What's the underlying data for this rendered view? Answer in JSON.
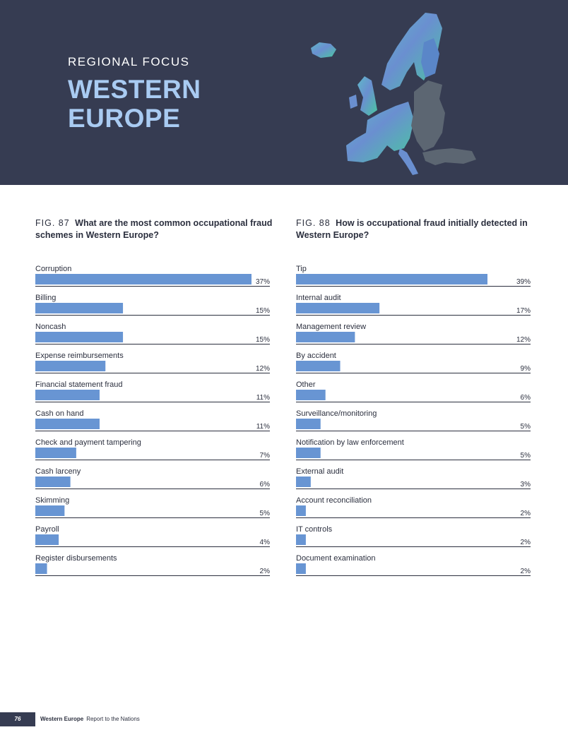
{
  "header": {
    "kicker": "REGIONAL FOCUS",
    "title_line1": "WESTERN",
    "title_line2": "EUROPE",
    "map_icon": "europe-map-illustration"
  },
  "colors": {
    "bar": "#6895d3",
    "axis": "#2b2f3e",
    "header_bg": "#363c52",
    "title_accent": "#a9cbf2"
  },
  "fig87": {
    "number": "FIG. 87",
    "question": "What are the most common occupational fraud schemes in Western Europe?"
  },
  "fig88": {
    "number": "FIG. 88",
    "question": "How is occupational fraud initially detected in Western Europe?"
  },
  "chart_data": [
    {
      "type": "bar",
      "orientation": "horizontal",
      "categories": [
        "Corruption",
        "Billing",
        "Noncash",
        "Expense reimbursements",
        "Financial statement fraud",
        "Cash on hand",
        "Check and payment tampering",
        "Cash larceny",
        "Skimming",
        "Payroll",
        "Register disbursements"
      ],
      "values": [
        37,
        15,
        15,
        12,
        11,
        11,
        7,
        6,
        5,
        4,
        2
      ],
      "labels": [
        "37%",
        "15%",
        "15%",
        "12%",
        "11%",
        "11%",
        "7%",
        "6%",
        "5%",
        "4%",
        "2%"
      ],
      "xlim": [
        0,
        37
      ]
    },
    {
      "type": "bar",
      "orientation": "horizontal",
      "categories": [
        "Tip",
        "Internal audit",
        "Management review",
        "By accident",
        "Other",
        "Surveillance/monitoring",
        "Notification by law enforcement",
        "External audit",
        "Account reconciliation",
        "IT controls",
        "Document examination"
      ],
      "values": [
        39,
        17,
        12,
        9,
        6,
        5,
        5,
        3,
        2,
        2,
        2
      ],
      "labels": [
        "39%",
        "17%",
        "12%",
        "9%",
        "6%",
        "5%",
        "5%",
        "3%",
        "2%",
        "2%",
        "2%"
      ],
      "xlim": [
        0,
        39
      ]
    }
  ],
  "footer": {
    "page_number": "76",
    "section": "Western Europe",
    "report": "Report to the Nations"
  }
}
